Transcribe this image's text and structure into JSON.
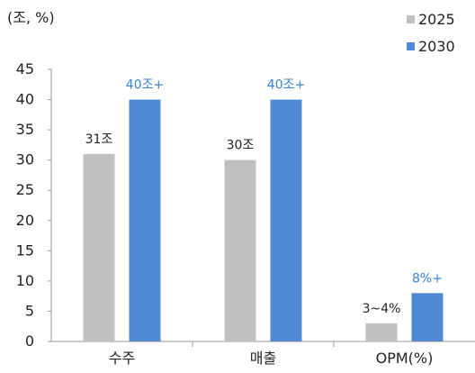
{
  "chart_data": {
    "type": "bar",
    "unit_label": "(조, %)",
    "categories": [
      "수주",
      "매출",
      "OPM(%)"
    ],
    "series": [
      {
        "name": "2025",
        "values": [
          31,
          30,
          3
        ],
        "labels": [
          "31조",
          "30조",
          "3~4%"
        ],
        "color": "#c0c0c0",
        "label_color": "#222222"
      },
      {
        "name": "2030",
        "values": [
          40,
          40,
          8
        ],
        "labels": [
          "40조+",
          "40조+",
          "8%+"
        ],
        "color": "#4f8ad4",
        "label_color": "#3a84cf"
      }
    ],
    "ylim": [
      0,
      45
    ],
    "yticks": [
      "0",
      "5",
      "10",
      "15",
      "20",
      "25",
      "30",
      "35",
      "40",
      "45"
    ],
    "grid": false,
    "legend_position": "top-right"
  }
}
